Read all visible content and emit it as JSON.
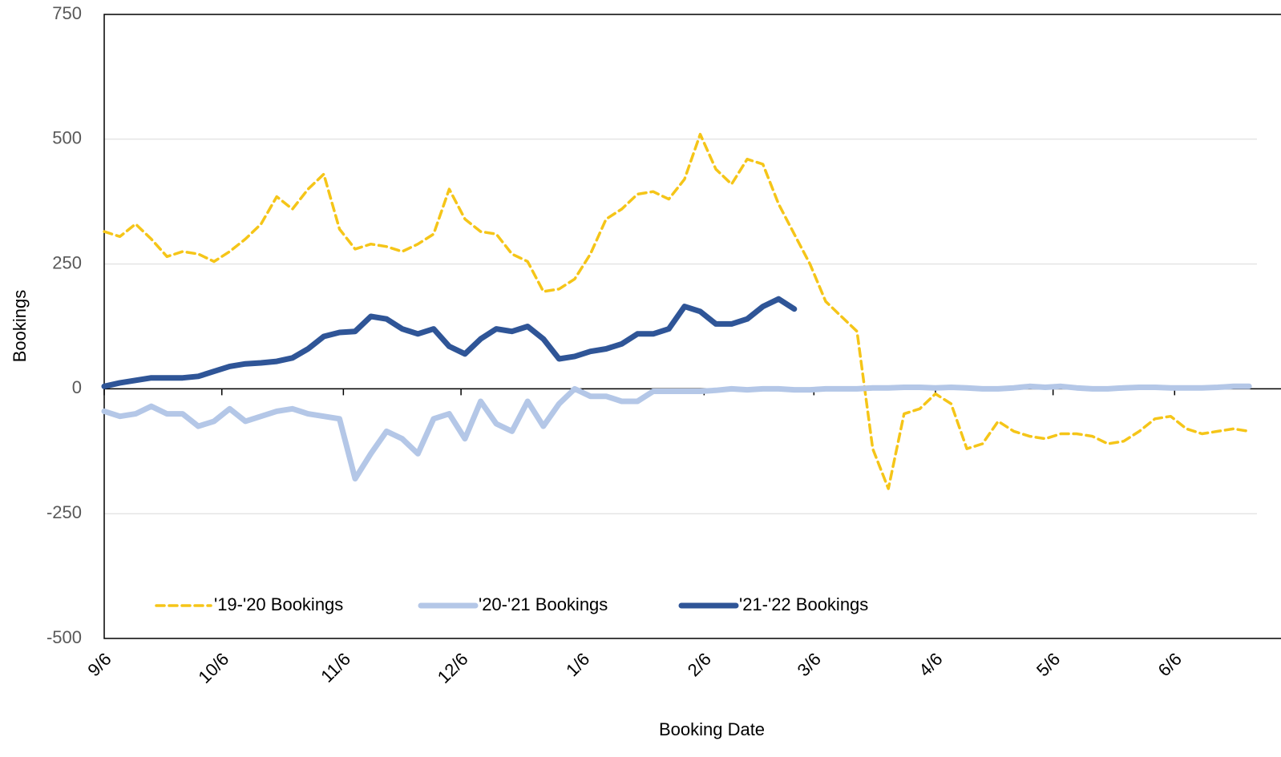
{
  "chart_data": {
    "type": "line",
    "xlabel": "Booking Date",
    "ylabel": "Bookings",
    "x": [
      0,
      4,
      8,
      12,
      16,
      20,
      24,
      28,
      32,
      36,
      40,
      44,
      48,
      52,
      56,
      60,
      64,
      68,
      72,
      76,
      80,
      84,
      88,
      92,
      96,
      100,
      104,
      108,
      112,
      116,
      120,
      124,
      128,
      132,
      136,
      140,
      144,
      148,
      152,
      156,
      160,
      164,
      168,
      172,
      176,
      180,
      184,
      188,
      192,
      196,
      200,
      204,
      208,
      212,
      216,
      220,
      224,
      228,
      232,
      236,
      240,
      244,
      248,
      252,
      256,
      260,
      264,
      268,
      272,
      276,
      280,
      284,
      288,
      292
    ],
    "series": [
      {
        "name": "'19-'20 Bookings",
        "color": "#f5c518",
        "dashed": true,
        "values": [
          315,
          305,
          330,
          300,
          265,
          275,
          270,
          255,
          275,
          300,
          330,
          385,
          360,
          400,
          430,
          320,
          280,
          290,
          285,
          275,
          290,
          310,
          400,
          340,
          315,
          310,
          270,
          255,
          195,
          200,
          220,
          270,
          340,
          360,
          390,
          395,
          380,
          420,
          510,
          440,
          410,
          460,
          450,
          370,
          310,
          250,
          175,
          145,
          115,
          -120,
          -200,
          -50,
          -40,
          -10,
          -30,
          -120,
          -110,
          -65,
          -85,
          -95,
          -100,
          -90,
          -90,
          -95,
          -110,
          -105,
          -85,
          -60,
          -55,
          -80,
          -90,
          -85,
          -80,
          -85
        ]
      },
      {
        "name": "'20-'21 Bookings",
        "color": "#b4c7e7",
        "dashed": false,
        "values": [
          -45,
          -55,
          -50,
          -35,
          -50,
          -50,
          -75,
          -65,
          -40,
          -65,
          -55,
          -45,
          -40,
          -50,
          -55,
          -60,
          -180,
          -130,
          -85,
          -100,
          -130,
          -60,
          -50,
          -100,
          -25,
          -70,
          -85,
          -25,
          -75,
          -30,
          0,
          -15,
          -15,
          -25,
          -25,
          -5,
          -5,
          -5,
          -5,
          -3,
          0,
          -2,
          0,
          0,
          -2,
          -2,
          0,
          0,
          0,
          2,
          2,
          3,
          3,
          2,
          3,
          2,
          0,
          0,
          2,
          5,
          3,
          5,
          2,
          0,
          0,
          2,
          3,
          3,
          2,
          2,
          2,
          3,
          5,
          5
        ]
      },
      {
        "name": "'21-'22 Bookings",
        "color": "#2f5597",
        "dashed": false,
        "values": [
          5,
          12,
          17,
          22,
          22,
          22,
          25,
          35,
          45,
          50,
          52,
          55,
          62,
          80,
          105,
          113,
          115,
          145,
          140,
          120,
          110,
          120,
          85,
          70,
          100,
          120,
          115,
          125,
          100,
          60,
          65,
          75,
          80,
          90,
          110,
          110,
          120,
          165,
          155,
          130,
          130,
          140,
          165,
          180,
          160,
          null,
          null,
          null,
          null,
          null,
          null,
          null,
          null,
          null,
          null,
          null,
          null,
          null,
          null,
          null,
          null,
          null,
          null,
          null,
          null,
          null,
          null,
          null,
          null,
          null,
          null,
          null,
          null,
          null
        ]
      }
    ],
    "xlim": [
      0,
      294
    ],
    "xticks": [
      {
        "value": 0,
        "label": "9/6"
      },
      {
        "value": 30,
        "label": "10/6"
      },
      {
        "value": 61,
        "label": "11/6"
      },
      {
        "value": 91,
        "label": "12/6"
      },
      {
        "value": 122,
        "label": "1/6"
      },
      {
        "value": 153,
        "label": "2/6"
      },
      {
        "value": 181,
        "label": "3/6"
      },
      {
        "value": 212,
        "label": "4/6"
      },
      {
        "value": 242,
        "label": "5/6"
      },
      {
        "value": 273,
        "label": "6/6"
      }
    ],
    "ylim": [
      -500,
      750
    ],
    "yticks": [
      -500,
      -250,
      0,
      250,
      500,
      750
    ],
    "grid": true,
    "legend": "bottom"
  }
}
